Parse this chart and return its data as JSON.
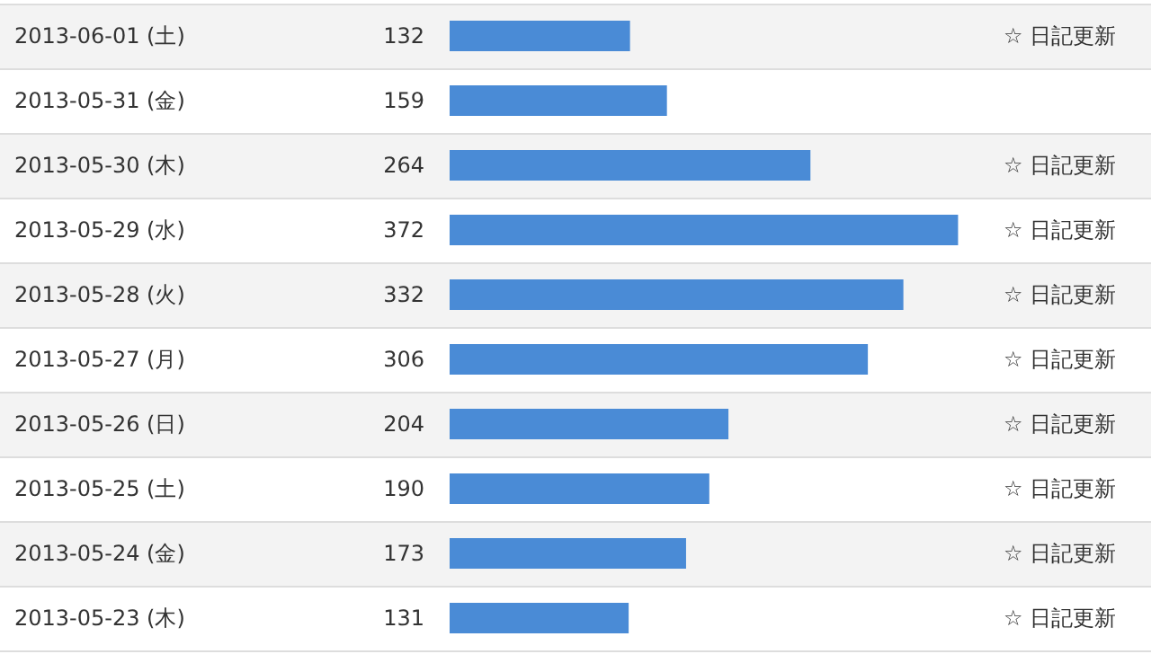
{
  "chart_data": {
    "type": "bar",
    "orientation": "horizontal",
    "categories": [
      "2013-06-01 (土)",
      "2013-05-31 (金)",
      "2013-05-30 (木)",
      "2013-05-29 (水)",
      "2013-05-28 (火)",
      "2013-05-27 (月)",
      "2013-05-26 (日)",
      "2013-05-25 (土)",
      "2013-05-24 (金)",
      "2013-05-23 (木)"
    ],
    "values": [
      132,
      159,
      264,
      372,
      332,
      306,
      204,
      190,
      173,
      131
    ],
    "color": "#4a8bd6",
    "data_labels": true,
    "tick_labels": "y",
    "annotations": [
      "☆ 日記更新",
      null,
      "☆ 日記更新",
      "☆ 日記更新",
      "☆ 日記更新",
      "☆ 日記更新",
      "☆ 日記更新",
      "☆ 日記更新",
      "☆ 日記更新",
      "☆ 日記更新"
    ]
  }
}
